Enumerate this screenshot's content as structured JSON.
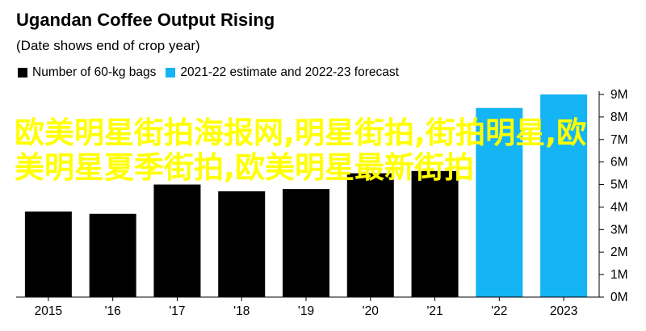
{
  "chart_data": {
    "type": "bar",
    "title": "Ugandan Coffee Output Rising",
    "subtitle": "(Date shows end of crop year)",
    "legend": [
      {
        "name": "Number of 60-kg bags",
        "color": "#000000"
      },
      {
        "name": "2021-22 estimate and 2022-23 forecast",
        "color": "#14b4f5"
      }
    ],
    "categories": [
      "2015",
      "'16",
      "'17",
      "'18",
      "'19",
      "'20",
      "'21",
      "'22",
      "2023"
    ],
    "values": [
      3.8,
      3.7,
      5.0,
      4.7,
      4.8,
      5.5,
      5.6,
      8.4,
      9.0
    ],
    "series_index": [
      0,
      0,
      0,
      0,
      0,
      0,
      0,
      1,
      1
    ],
    "y_ticks": [
      "0M",
      "1M",
      "2M",
      "3M",
      "4M",
      "5M",
      "6M",
      "7M",
      "8M",
      "9M"
    ],
    "ylim": [
      0,
      9
    ],
    "grid": false,
    "legend_position": "top-left",
    "xlabel": "",
    "ylabel": ""
  },
  "overlay_text": "欧美明星街拍海报网,明星街拍,街拍明星,欧美明星夏季街拍,欧美明星最新街拍"
}
